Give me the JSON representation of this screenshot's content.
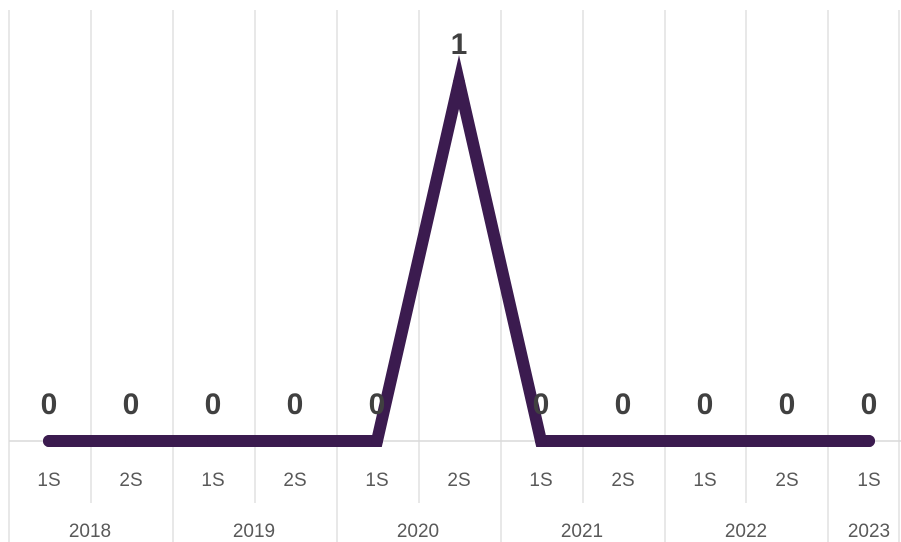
{
  "chart_data": {
    "type": "line",
    "categories": [
      {
        "half": "1S",
        "year": "2018"
      },
      {
        "half": "2S",
        "year": "2018"
      },
      {
        "half": "1S",
        "year": "2019"
      },
      {
        "half": "2S",
        "year": "2019"
      },
      {
        "half": "1S",
        "year": "2020"
      },
      {
        "half": "2S",
        "year": "2020"
      },
      {
        "half": "1S",
        "year": "2021"
      },
      {
        "half": "2S",
        "year": "2021"
      },
      {
        "half": "1S",
        "year": "2022"
      },
      {
        "half": "2S",
        "year": "2022"
      },
      {
        "half": "1S",
        "year": "2023"
      }
    ],
    "year_groups": [
      "2018",
      "2019",
      "2020",
      "2021",
      "2022",
      "2023"
    ],
    "series": [
      {
        "values": [
          0,
          0,
          0,
          0,
          0,
          1,
          0,
          0,
          0,
          0,
          0
        ],
        "color": "#3b1b4f"
      }
    ],
    "data_labels": [
      "0",
      "0",
      "0",
      "0",
      "0",
      "1",
      "0",
      "0",
      "0",
      "0",
      "0"
    ],
    "ylim": [
      0,
      1
    ],
    "grid": "vertical",
    "legend": "none",
    "title": "",
    "xlabel": "",
    "ylabel": ""
  },
  "colors": {
    "line": "#3b1b4f",
    "grid": "#d9d9d9",
    "tick_text": "#595959",
    "label_text": "#404040"
  }
}
